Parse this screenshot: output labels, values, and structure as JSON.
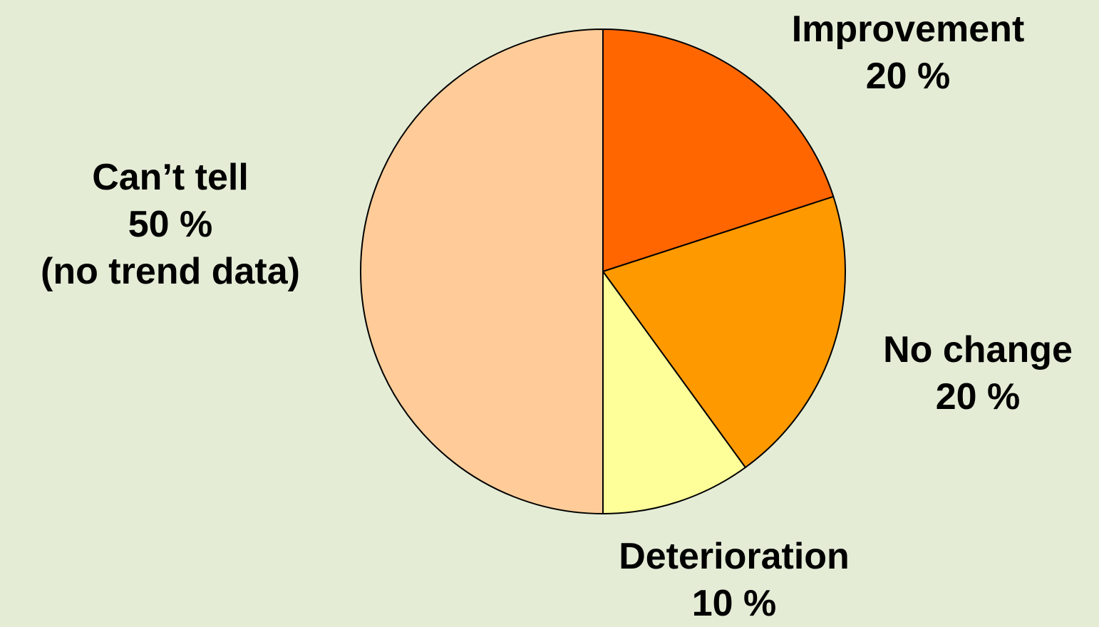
{
  "background": "#e4ecd6",
  "chart_data": {
    "type": "pie",
    "start_angle_deg": 0,
    "direction": "clockwise",
    "slice_border_color": "#000000",
    "slices": [
      {
        "label": "Improvement",
        "value": 20,
        "value_label": "20 %",
        "note": "",
        "color": "#ff6600"
      },
      {
        "label": "No change",
        "value": 20,
        "value_label": "20 %",
        "note": "",
        "color": "#ff9900"
      },
      {
        "label": "Deterioration",
        "value": 10,
        "value_label": "10 %",
        "note": "",
        "color": "#ffff99"
      },
      {
        "label": "Can’t tell",
        "value": 50,
        "value_label": "50 %",
        "note": "(no trend data)",
        "color": "#ffcc99"
      }
    ]
  }
}
